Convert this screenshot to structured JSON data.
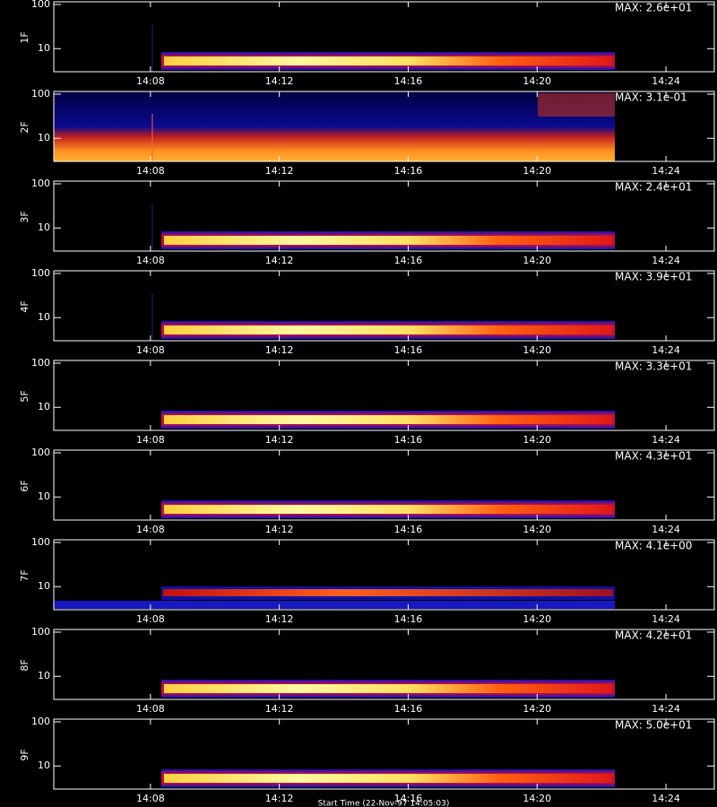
{
  "chart_data": [
    {
      "type": "heatmap",
      "ylabel": "1F",
      "annotation": "MAX: 2.6e+01",
      "log_y": true,
      "xlim": [
        845,
        865.5
      ],
      "ylim": [
        3,
        115
      ],
      "yticks": [
        10,
        100
      ],
      "xticks": [
        {
          "value": 848,
          "label": "14:08"
        },
        {
          "value": 852,
          "label": "14:12"
        },
        {
          "value": 856,
          "label": "14:16"
        },
        {
          "value": 860,
          "label": "14:20"
        },
        {
          "value": 864,
          "label": "14:24"
        }
      ]
    },
    {
      "type": "heatmap",
      "ylabel": "2F",
      "annotation": "MAX: 3.1e-01",
      "log_y": true,
      "xlim": [
        845,
        865.5
      ],
      "ylim": [
        3,
        115
      ],
      "yticks": [
        10,
        100
      ],
      "xticks": [
        {
          "value": 848,
          "label": "14:08"
        },
        {
          "value": 852,
          "label": "14:12"
        },
        {
          "value": 856,
          "label": "14:16"
        },
        {
          "value": 860,
          "label": "14:20"
        },
        {
          "value": 864,
          "label": "14:24"
        }
      ]
    },
    {
      "type": "heatmap",
      "ylabel": "3F",
      "annotation": "MAX: 2.4e+01",
      "log_y": true,
      "xlim": [
        845,
        865.5
      ],
      "ylim": [
        3,
        115
      ],
      "yticks": [
        10,
        100
      ],
      "xticks": [
        {
          "value": 848,
          "label": "14:08"
        },
        {
          "value": 852,
          "label": "14:12"
        },
        {
          "value": 856,
          "label": "14:16"
        },
        {
          "value": 860,
          "label": "14:20"
        },
        {
          "value": 864,
          "label": "14:24"
        }
      ]
    },
    {
      "type": "heatmap",
      "ylabel": "4F",
      "annotation": "MAX: 3.9e+01",
      "log_y": true,
      "xlim": [
        845,
        865.5
      ],
      "ylim": [
        3,
        115
      ],
      "yticks": [
        10,
        100
      ],
      "xticks": [
        {
          "value": 848,
          "label": "14:08"
        },
        {
          "value": 852,
          "label": "14:12"
        },
        {
          "value": 856,
          "label": "14:16"
        },
        {
          "value": 860,
          "label": "14:20"
        },
        {
          "value": 864,
          "label": "14:24"
        }
      ]
    },
    {
      "type": "heatmap",
      "ylabel": "5F",
      "annotation": "MAX: 3.3e+01",
      "log_y": true,
      "xlim": [
        845,
        865.5
      ],
      "ylim": [
        3,
        115
      ],
      "yticks": [
        10,
        100
      ],
      "xticks": [
        {
          "value": 848,
          "label": "14:08"
        },
        {
          "value": 852,
          "label": "14:12"
        },
        {
          "value": 856,
          "label": "14:16"
        },
        {
          "value": 860,
          "label": "14:20"
        },
        {
          "value": 864,
          "label": "14:24"
        }
      ]
    },
    {
      "type": "heatmap",
      "ylabel": "6F",
      "annotation": "MAX: 4.3e+01",
      "log_y": true,
      "xlim": [
        845,
        865.5
      ],
      "ylim": [
        3,
        115
      ],
      "yticks": [
        10,
        100
      ],
      "xticks": [
        {
          "value": 848,
          "label": "14:08"
        },
        {
          "value": 852,
          "label": "14:12"
        },
        {
          "value": 856,
          "label": "14:16"
        },
        {
          "value": 860,
          "label": "14:20"
        },
        {
          "value": 864,
          "label": "14:24"
        }
      ]
    },
    {
      "type": "heatmap",
      "ylabel": "7F",
      "annotation": "MAX: 4.1e+00",
      "log_y": true,
      "xlim": [
        845,
        865.5
      ],
      "ylim": [
        3,
        115
      ],
      "yticks": [
        10,
        100
      ],
      "xticks": [
        {
          "value": 848,
          "label": "14:08"
        },
        {
          "value": 852,
          "label": "14:12"
        },
        {
          "value": 856,
          "label": "14:16"
        },
        {
          "value": 860,
          "label": "14:20"
        },
        {
          "value": 864,
          "label": "14:24"
        }
      ]
    },
    {
      "type": "heatmap",
      "ylabel": "8F",
      "annotation": "MAX: 4.2e+01",
      "log_y": true,
      "xlim": [
        845,
        865.5
      ],
      "ylim": [
        3,
        115
      ],
      "yticks": [
        10,
        100
      ],
      "xticks": [
        {
          "value": 848,
          "label": "14:08"
        },
        {
          "value": 852,
          "label": "14:12"
        },
        {
          "value": 856,
          "label": "14:16"
        },
        {
          "value": 860,
          "label": "14:20"
        },
        {
          "value": 864,
          "label": "14:24"
        }
      ]
    },
    {
      "type": "heatmap",
      "ylabel": "9F",
      "annotation": "MAX: 5.0e+01",
      "xlabel": "Start Time (22-Nov-97 14:05:03)",
      "log_y": true,
      "xlim": [
        845,
        865.5
      ],
      "ylim": [
        3,
        115
      ],
      "yticks": [
        10,
        100
      ],
      "xticks": [
        {
          "value": 848,
          "label": "14:08"
        },
        {
          "value": 852,
          "label": "14:12"
        },
        {
          "value": 856,
          "label": "14:16"
        },
        {
          "value": 860,
          "label": "14:20"
        },
        {
          "value": 864,
          "label": "14:24"
        }
      ]
    }
  ]
}
